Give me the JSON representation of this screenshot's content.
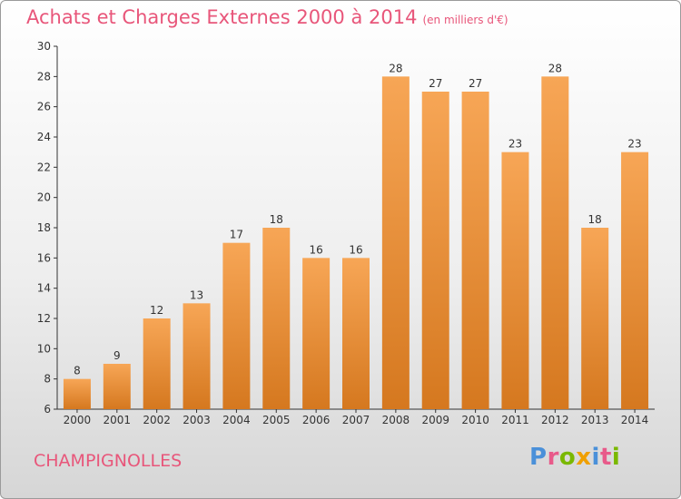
{
  "title": "Achats et Charges Externes 2000 à 2014",
  "title_unit": "(en milliers d'€)",
  "commune": "CHAMPIGNOLLES",
  "logo_letters": [
    "P",
    "r",
    "o",
    "x",
    "i",
    "t",
    "i"
  ],
  "logo_colors": [
    "#4a90d9",
    "#e85a8a",
    "#7ab800",
    "#f0a000",
    "#4a90d9",
    "#e85a8a",
    "#7ab800"
  ],
  "colors": {
    "bar_top": "#f7a656",
    "bar_bottom": "#d5781f",
    "title": "#e8567a"
  },
  "chart_data": {
    "type": "bar",
    "title": "Achats et Charges Externes 2000 à 2014",
    "xlabel": "",
    "ylabel": "",
    "categories": [
      "2000",
      "2001",
      "2002",
      "2003",
      "2004",
      "2005",
      "2006",
      "2007",
      "2008",
      "2009",
      "2010",
      "2011",
      "2012",
      "2013",
      "2014"
    ],
    "values": [
      8,
      9,
      12,
      13,
      17,
      18,
      16,
      16,
      28,
      27,
      27,
      23,
      28,
      18,
      23
    ],
    "ylim": [
      6,
      30
    ],
    "yticks": [
      6,
      8,
      10,
      12,
      14,
      16,
      18,
      20,
      22,
      24,
      26,
      28,
      30
    ],
    "grid": false
  }
}
